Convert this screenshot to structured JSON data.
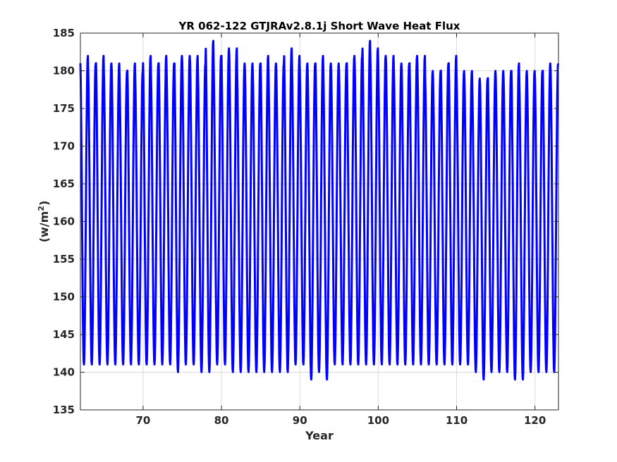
{
  "chart_data": {
    "type": "line",
    "title": "YR 062-122 GTJRAv2.8.1j Short Wave Heat Flux",
    "xlabel": "Year",
    "ylabel": "(w/m",
    "ylabel_superscript": "2",
    "ylabel_close": ")",
    "xlim": [
      62,
      123
    ],
    "ylim": [
      135,
      185
    ],
    "xticks": [
      70,
      80,
      90,
      100,
      110,
      120
    ],
    "yticks": [
      135,
      140,
      145,
      150,
      155,
      160,
      165,
      170,
      175,
      180,
      185
    ],
    "grid": true,
    "legend": "none",
    "line_color": "#0000ff",
    "series": [
      {
        "cycle": "annual",
        "start_year": 62,
        "end_year": 123,
        "annual_max": [
          182,
          181,
          182,
          181,
          181,
          180,
          181,
          180,
          182,
          181,
          182,
          181,
          182,
          182,
          182,
          181,
          184,
          182,
          183,
          183,
          181,
          181,
          181,
          182,
          181,
          181,
          183,
          182,
          181,
          181,
          182,
          181,
          181,
          181,
          182,
          182,
          184,
          183,
          182,
          182,
          181,
          181,
          182,
          182,
          180,
          180,
          181,
          182,
          180,
          180,
          179,
          179,
          180,
          180,
          180,
          181,
          180,
          180,
          180,
          181,
          181
        ],
        "annual_min": [
          141,
          141,
          141,
          141,
          141,
          141,
          141,
          141,
          141,
          141,
          141,
          141,
          140,
          141,
          141,
          140,
          140,
          141,
          141,
          140,
          140,
          140,
          140,
          140,
          140,
          140,
          140,
          141,
          141,
          139,
          140,
          139,
          141,
          141,
          141,
          141,
          141,
          141,
          141,
          141,
          141,
          141,
          141,
          141,
          141,
          141,
          141,
          141,
          141,
          141,
          140,
          139,
          140,
          140,
          140,
          139,
          139,
          140,
          140,
          140,
          140
        ]
      }
    ]
  }
}
